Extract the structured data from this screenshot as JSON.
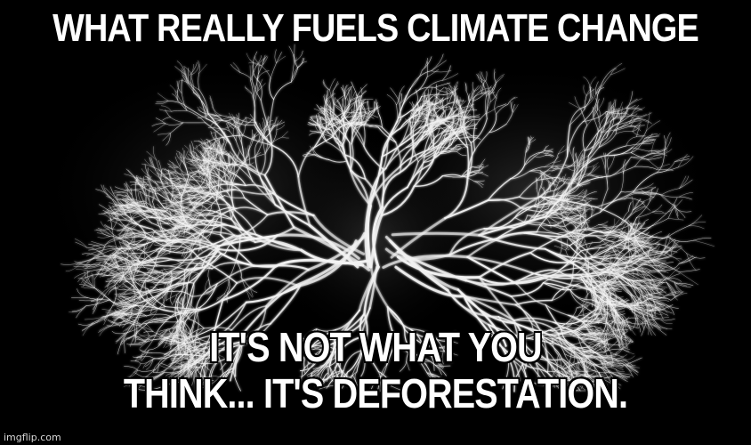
{
  "meme": {
    "top_text": "WHAT REALLY FUELS CLIMATE CHANGE",
    "bottom_line_1": "IT'S NOT WHAT YOU",
    "bottom_line_2": "THINK... IT'S DEFORESTATION.",
    "watermark": "imgflip.com"
  },
  "image": {
    "subject": "white tree-branch network forming lung shape",
    "background_color": "#000000",
    "text_color": "#ffffff"
  }
}
